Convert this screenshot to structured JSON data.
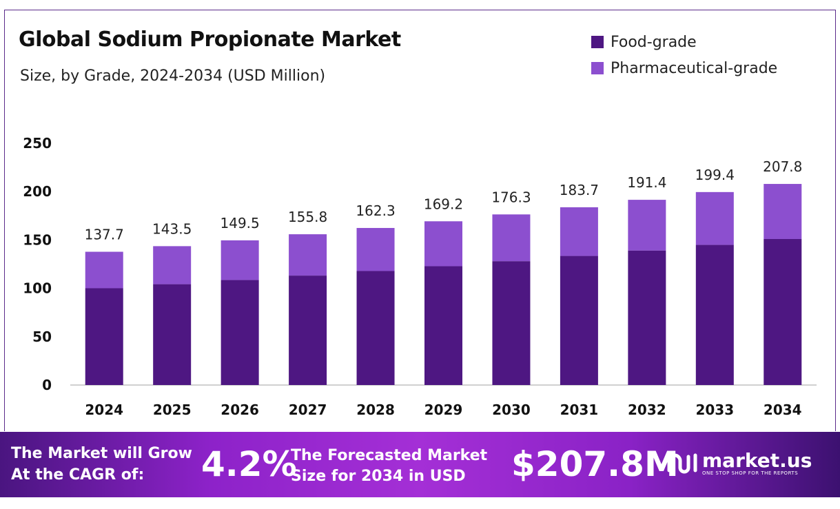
{
  "chart_data": {
    "type": "bar",
    "stacked": true,
    "title": "Global Sodium Propionate Market",
    "subtitle": "Size, by Grade, 2024-2034 (USD Million)",
    "categories": [
      "2024",
      "2025",
      "2026",
      "2027",
      "2028",
      "2029",
      "2030",
      "2031",
      "2032",
      "2033",
      "2034"
    ],
    "series": [
      {
        "name": "Food-grade",
        "color": "#4e1782",
        "values": [
          100.0,
          104.2,
          108.5,
          113.1,
          117.8,
          122.8,
          128.0,
          133.4,
          139.0,
          144.8,
          150.9
        ]
      },
      {
        "name": "Pharmaceutical-grade",
        "color": "#8c4fcf",
        "values": [
          37.7,
          39.3,
          41.0,
          42.7,
          44.5,
          46.4,
          48.3,
          50.3,
          52.4,
          54.6,
          56.9
        ]
      }
    ],
    "totals": [
      "137.7",
      "143.5",
      "149.5",
      "155.8",
      "162.3",
      "169.2",
      "176.3",
      "183.7",
      "191.4",
      "199.4",
      "207.8"
    ],
    "yticks": [
      "0",
      "50",
      "100",
      "150",
      "200",
      "250"
    ],
    "ylim": [
      0,
      250
    ],
    "grid": false,
    "legend": "top-right"
  },
  "banner": {
    "cagr_label_1": "The Market will Grow",
    "cagr_label_2": "At the CAGR of:",
    "cagr_value": "4.2%",
    "forecast_label_1": "The Forecasted Market",
    "forecast_label_2": "Size for 2034 in USD",
    "forecast_value": "$207.8M",
    "logo_text": "market.us",
    "logo_tagline": "ONE STOP SHOP FOR THE REPORTS"
  }
}
